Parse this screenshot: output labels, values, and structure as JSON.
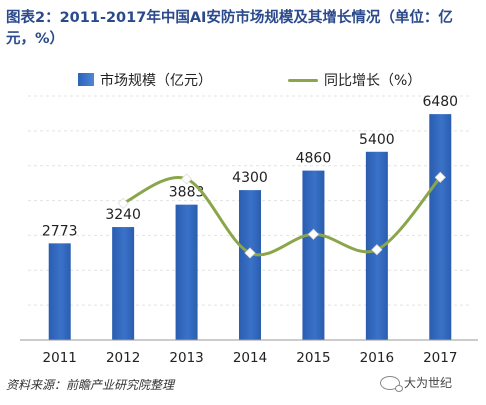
{
  "title": "图表2：2011-2017年中国AI安防市场规模及其增长情况（单位：亿元，%）",
  "footer": "资料来源：前瞻产业研究院整理",
  "brand": {
    "icon": "wechat-icon",
    "text": "大为世纪"
  },
  "colors": {
    "bar": "#3a72c8",
    "line": "#8aa54a",
    "marker": "#ffffff"
  },
  "chart_data": {
    "type": "bar",
    "title": "图表2：2011-2017年中国AI安防市场规模及其增长情况（单位：亿元，%）",
    "xlabel": "",
    "ylabel": "",
    "categories": [
      "2011",
      "2012",
      "2013",
      "2014",
      "2015",
      "2016",
      "2017"
    ],
    "series": [
      {
        "name": "市场规模（亿元）",
        "type": "bar",
        "values": [
          2773,
          3240,
          3883,
          4300,
          4860,
          5400,
          6480
        ],
        "data_labels": [
          "2773",
          "3240",
          "3883",
          "4300",
          "4860",
          "5400",
          "6480"
        ]
      },
      {
        "name": "同比增长（%）",
        "type": "line",
        "axis": "secondary",
        "values": [
          null,
          16.8,
          19.8,
          10.7,
          13.0,
          11.1,
          20.0
        ]
      }
    ],
    "ylim": [
      0,
      7000
    ],
    "ylim_secondary": [
      0,
      30
    ],
    "grid": true,
    "legend": "top"
  }
}
